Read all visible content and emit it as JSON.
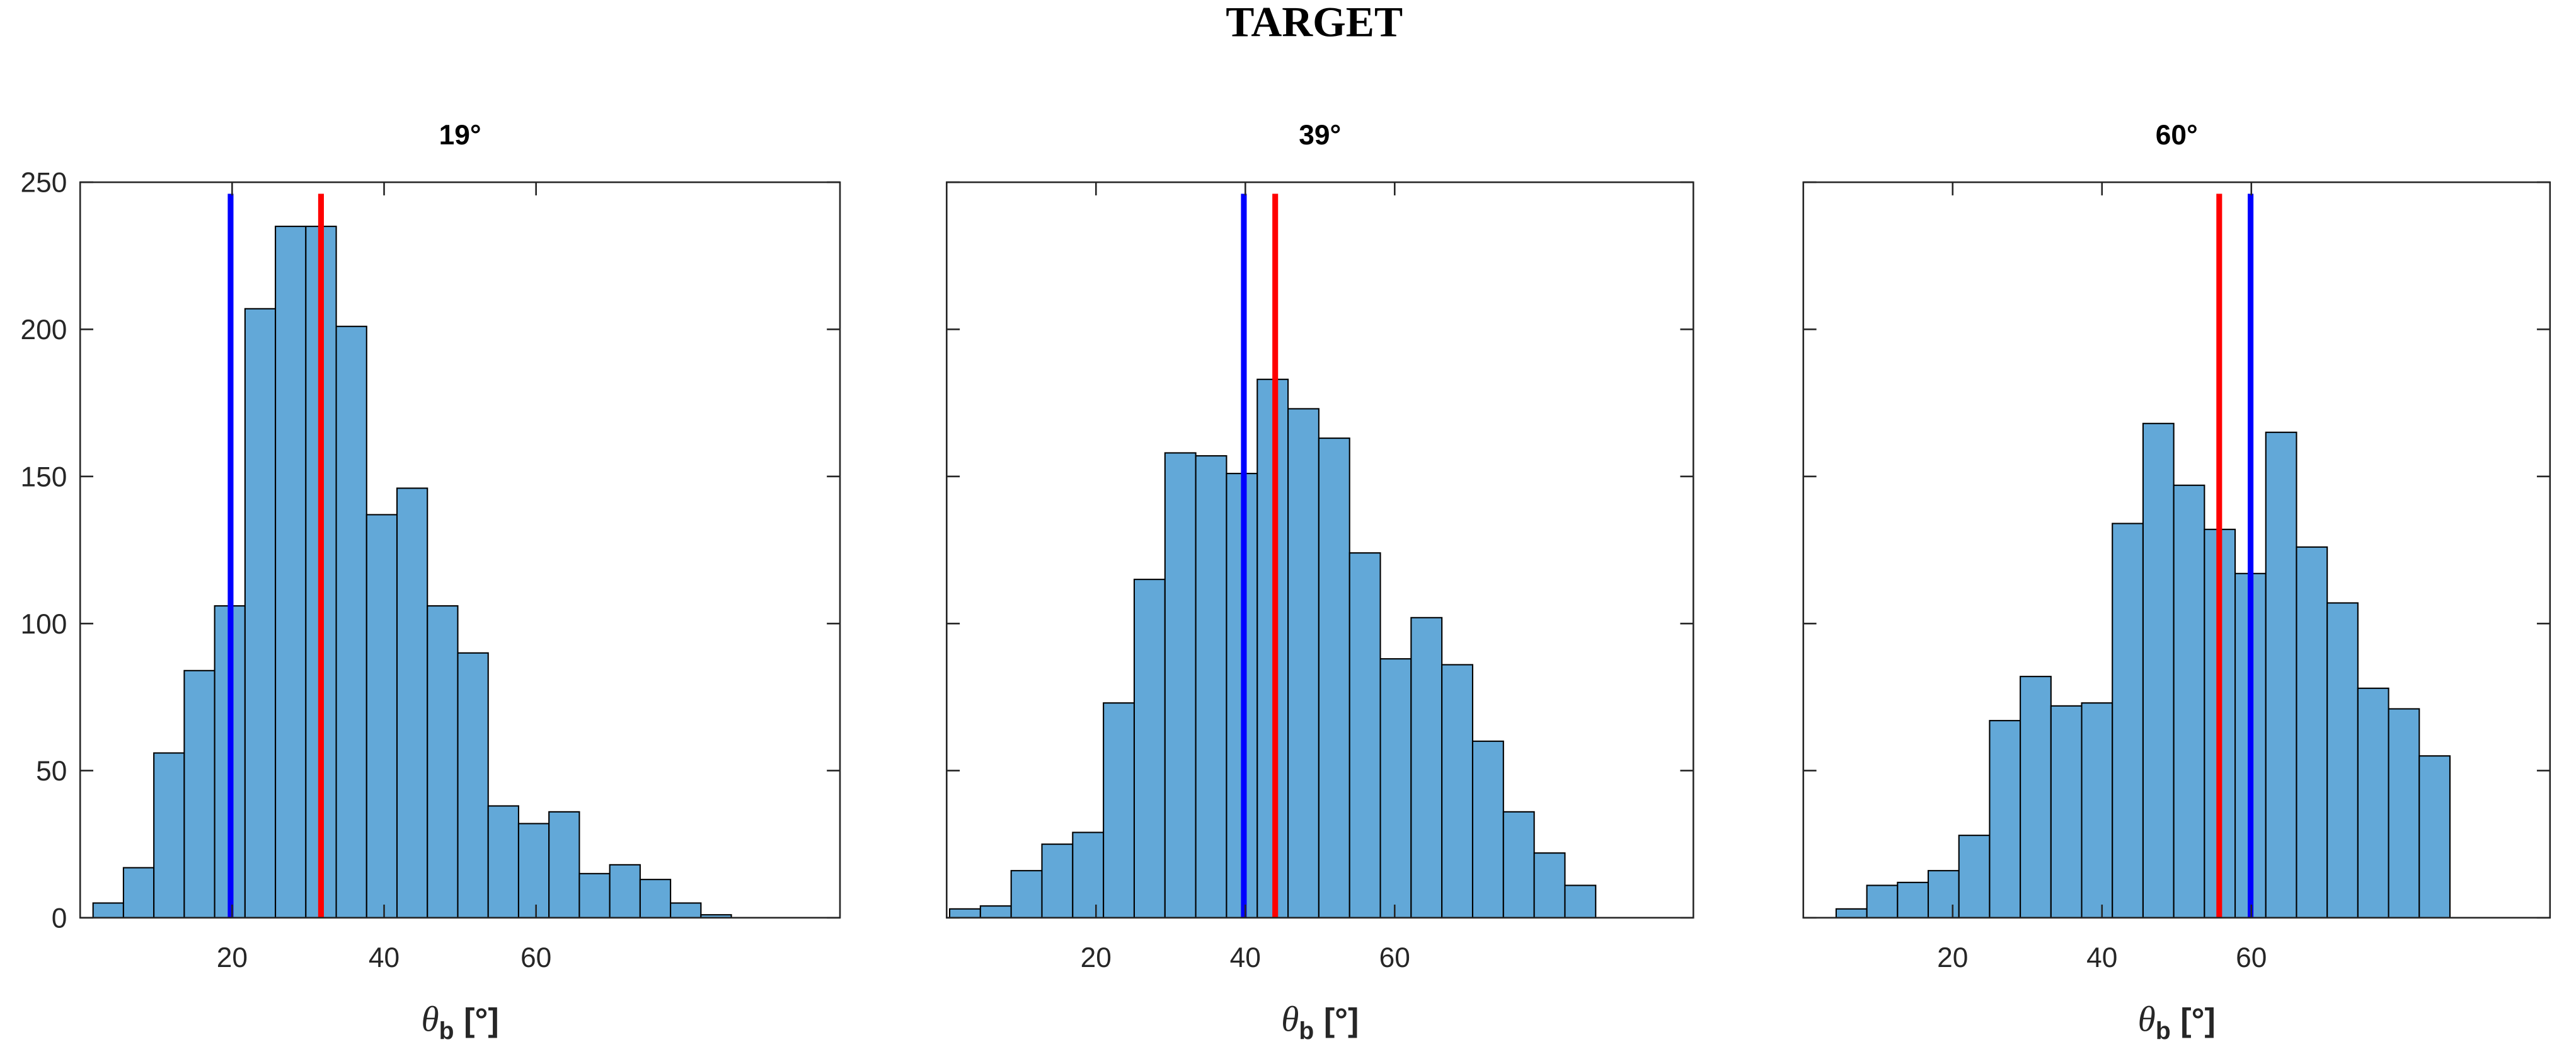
{
  "title": "TARGET",
  "chart_data": [
    {
      "type": "histogram",
      "title": "19°",
      "bins": [
        1.7,
        5.7,
        9.7,
        13.7,
        17.7,
        21.7,
        25.7,
        29.7,
        33.7,
        37.7,
        41.7,
        45.7,
        49.7,
        53.7,
        57.7,
        61.7,
        65.7,
        69.7,
        73.7,
        77.7,
        81.7,
        85.7
      ],
      "values": [
        5,
        17,
        56,
        84,
        106,
        207,
        235,
        235,
        201,
        137,
        146,
        106,
        90,
        38,
        32,
        36,
        15,
        18,
        13,
        5,
        1
      ],
      "color": "#62a8d8",
      "vlines": [
        {
          "x": 19.8,
          "color": "#0000ff"
        },
        {
          "x": 31.7,
          "color": "#ff0000"
        }
      ],
      "xlim": [
        0,
        100
      ],
      "ylim": [
        0,
        250
      ],
      "xticks": [
        20,
        40,
        60
      ],
      "yticks": [
        0,
        50,
        100,
        150,
        200,
        250
      ],
      "show_yticklabels": true,
      "xlabel": {
        "symbol": "θ",
        "subscript": "b",
        "unit": "[°]"
      }
    },
    {
      "type": "histogram",
      "title": "39°",
      "bins": [
        0.4,
        4.52,
        8.64,
        12.76,
        16.88,
        21,
        25.12,
        29.24,
        33.36,
        37.48,
        41.6,
        45.72,
        49.84,
        53.96,
        58.08,
        62.2,
        66.32,
        70.44,
        74.56,
        78.68,
        82.8,
        86.92
      ],
      "values": [
        3,
        4,
        16,
        25,
        29,
        73,
        115,
        158,
        157,
        151,
        183,
        173,
        163,
        124,
        88,
        102,
        86,
        60,
        36,
        22,
        11
      ],
      "color": "#62a8d8",
      "vlines": [
        {
          "x": 39.8,
          "color": "#0000ff"
        },
        {
          "x": 44.0,
          "color": "#ff0000"
        }
      ],
      "xlim": [
        0,
        100
      ],
      "ylim": [
        0,
        250
      ],
      "xticks": [
        20,
        40,
        60
      ],
      "yticks": [
        0,
        50,
        100,
        150,
        200,
        250
      ],
      "show_yticklabels": false,
      "xlabel": {
        "symbol": "θ",
        "subscript": "b",
        "unit": "[°]"
      }
    },
    {
      "type": "histogram",
      "title": "60°",
      "bins": [
        4.4,
        8.51,
        12.62,
        16.73,
        20.84,
        24.95,
        29.06,
        33.17,
        37.28,
        41.39,
        45.5,
        49.61,
        53.72,
        57.83,
        61.94,
        66.05,
        70.16,
        74.27,
        78.38,
        82.49,
        86.6
      ],
      "values": [
        3,
        11,
        12,
        16,
        28,
        67,
        82,
        72,
        73,
        134,
        168,
        147,
        132,
        117,
        165,
        126,
        107,
        78,
        71,
        55
      ],
      "color": "#62a8d8",
      "vlines": [
        {
          "x": 59.9,
          "color": "#0000ff"
        },
        {
          "x": 55.7,
          "color": "#ff0000"
        }
      ],
      "xlim": [
        0,
        100
      ],
      "ylim": [
        0,
        250
      ],
      "xticks": [
        20,
        40,
        60
      ],
      "yticks": [
        0,
        50,
        100,
        150,
        200,
        250
      ],
      "show_yticklabels": false,
      "xlabel": {
        "symbol": "θ",
        "subscript": "b",
        "unit": "[°]"
      }
    }
  ]
}
